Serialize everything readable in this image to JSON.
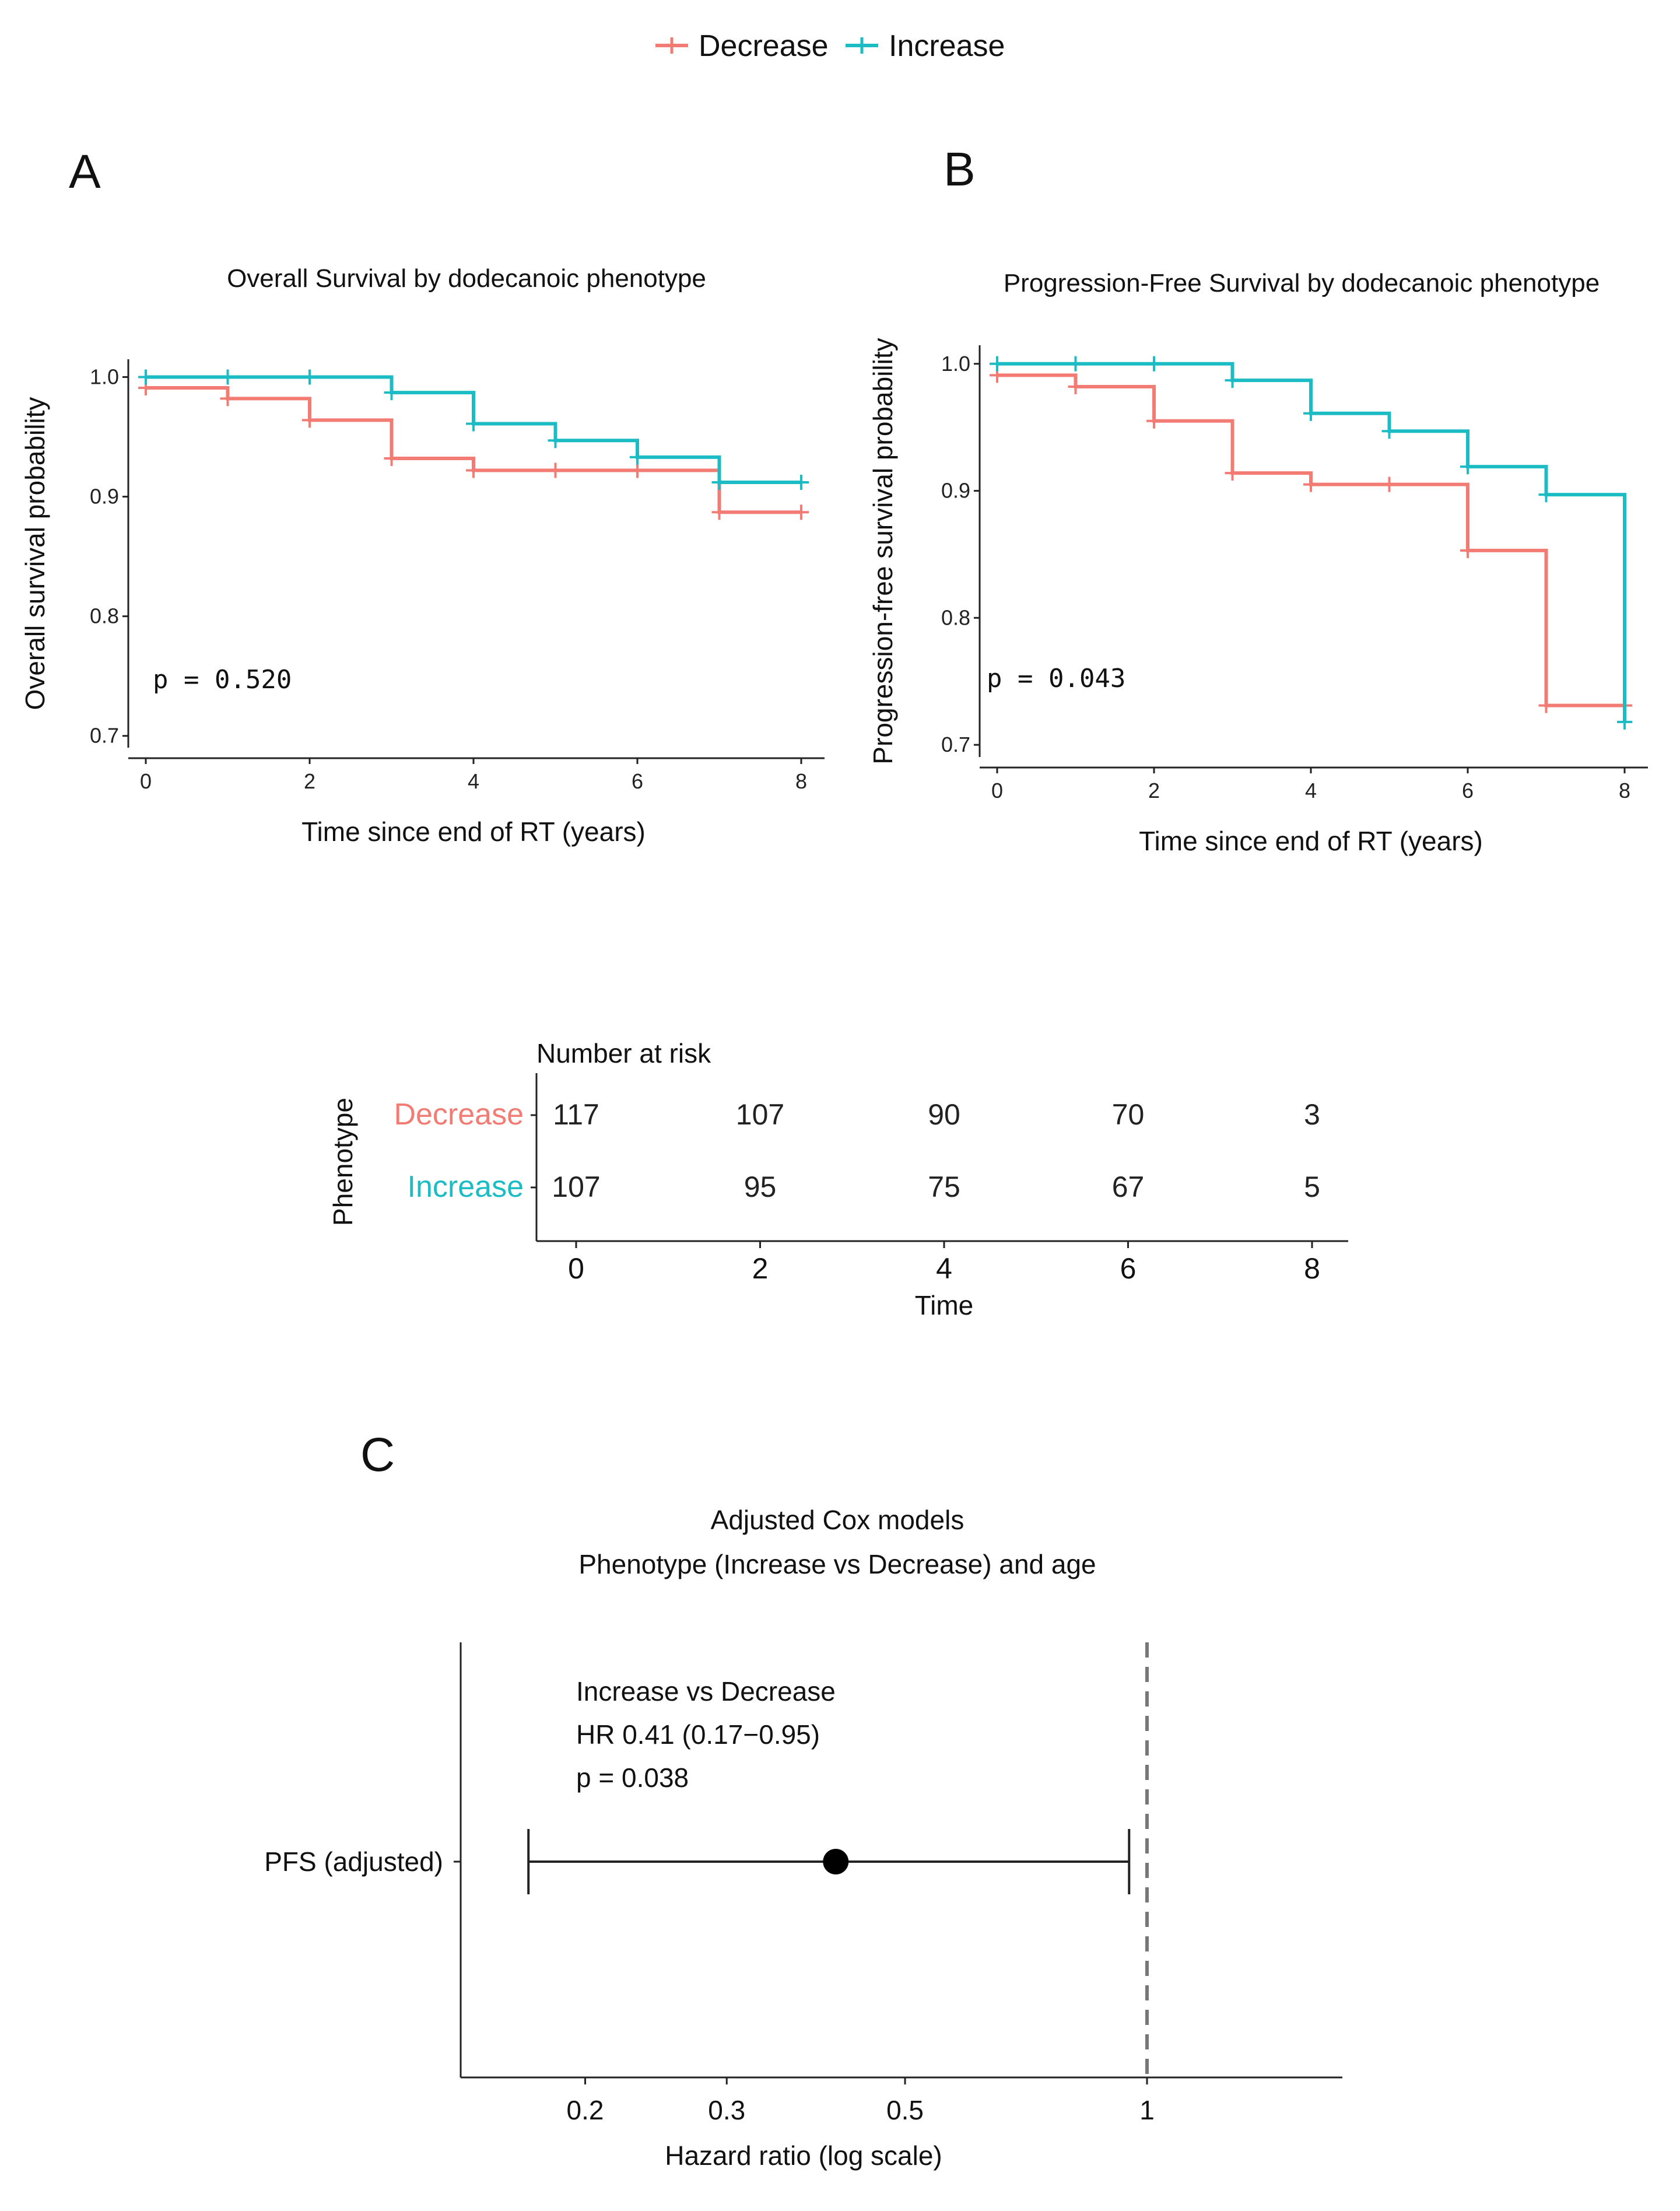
{
  "colors": {
    "decrease": "#F27B73",
    "increase": "#1CBCC4",
    "ink": "#222222",
    "refline": "#777777"
  },
  "legend": {
    "items": [
      {
        "label": "Decrease",
        "key": "decrease"
      },
      {
        "label": "Increase",
        "key": "increase"
      }
    ]
  },
  "panels": {
    "A": "A",
    "B": "B",
    "C": "C"
  },
  "chart_data": [
    {
      "id": "A",
      "type": "line",
      "step": true,
      "title": "Overall Survival by dodecanoic phenotype",
      "xlabel": "Time since end of RT (years)",
      "ylabel": "Overall survival probability",
      "xlim": [
        0,
        8
      ],
      "ylim": [
        0.695,
        1.01
      ],
      "xticks": [
        0,
        2,
        4,
        6,
        8
      ],
      "yticks": [
        0.7,
        0.8,
        0.9,
        1.0
      ],
      "ytick_labels": [
        "0.7",
        "0.8",
        "0.9",
        "1.0"
      ],
      "annotation": "p = 0.520",
      "series": [
        {
          "name": "Decrease",
          "key": "decrease",
          "steps": [
            [
              0,
              0.991
            ],
            [
              1,
              0.982
            ],
            [
              2,
              0.964
            ],
            [
              3,
              0.932
            ],
            [
              4,
              0.922
            ],
            [
              7,
              0.887
            ],
            [
              8,
              0.887
            ]
          ],
          "censor": [
            [
              0,
              0.991
            ],
            [
              1,
              0.982
            ],
            [
              2,
              0.964
            ],
            [
              3,
              0.932
            ],
            [
              4,
              0.922
            ],
            [
              5,
              0.922
            ],
            [
              6,
              0.922
            ],
            [
              7,
              0.887
            ],
            [
              8,
              0.887
            ]
          ]
        },
        {
          "name": "Increase",
          "key": "increase",
          "steps": [
            [
              0,
              1.0
            ],
            [
              3,
              0.987
            ],
            [
              4,
              0.961
            ],
            [
              5,
              0.947
            ],
            [
              6,
              0.933
            ],
            [
              7,
              0.912
            ],
            [
              8,
              0.912
            ]
          ],
          "censor": [
            [
              0,
              1.0
            ],
            [
              1,
              1.0
            ],
            [
              2,
              1.0
            ],
            [
              3,
              0.987
            ],
            [
              4,
              0.961
            ],
            [
              5,
              0.947
            ],
            [
              6,
              0.933
            ],
            [
              7,
              0.912
            ],
            [
              8,
              0.912
            ]
          ]
        }
      ]
    },
    {
      "id": "B",
      "type": "line",
      "step": true,
      "title": "Progression-Free Survival by dodecanoic phenotype",
      "xlabel": "Time since end of RT (years)",
      "ylabel": "Progression-free survival probability",
      "xlim": [
        0,
        8
      ],
      "ylim": [
        0.695,
        1.01
      ],
      "xticks": [
        0,
        2,
        4,
        6,
        8
      ],
      "yticks": [
        0.7,
        0.8,
        0.9,
        1.0
      ],
      "ytick_labels": [
        "0.7",
        "0.8",
        "0.9",
        "1.0"
      ],
      "annotation": "p = 0.043",
      "series": [
        {
          "name": "Decrease",
          "key": "decrease",
          "steps": [
            [
              0,
              0.991
            ],
            [
              1,
              0.982
            ],
            [
              2,
              0.955
            ],
            [
              3,
              0.914
            ],
            [
              4,
              0.905
            ],
            [
              6,
              0.853
            ],
            [
              7,
              0.731
            ],
            [
              8,
              0.731
            ]
          ],
          "censor": [
            [
              0,
              0.991
            ],
            [
              1,
              0.982
            ],
            [
              2,
              0.955
            ],
            [
              3,
              0.914
            ],
            [
              4,
              0.905
            ],
            [
              5,
              0.905
            ],
            [
              6,
              0.853
            ],
            [
              7,
              0.731
            ],
            [
              8,
              0.731
            ]
          ]
        },
        {
          "name": "Increase",
          "key": "increase",
          "steps": [
            [
              0,
              1.0
            ],
            [
              3,
              0.987
            ],
            [
              4,
              0.961
            ],
            [
              5,
              0.947
            ],
            [
              6,
              0.919
            ],
            [
              7,
              0.897
            ],
            [
              8,
              0.718
            ]
          ],
          "censor": [
            [
              0,
              1.0
            ],
            [
              1,
              1.0
            ],
            [
              2,
              1.0
            ],
            [
              3,
              0.987
            ],
            [
              4,
              0.961
            ],
            [
              5,
              0.947
            ],
            [
              6,
              0.919
            ],
            [
              7,
              0.897
            ],
            [
              8,
              0.718
            ]
          ]
        }
      ]
    },
    {
      "id": "risk",
      "type": "table",
      "title": "Number at risk",
      "xlabel": "Time",
      "ylabel": "Phenotype",
      "xlim": [
        0,
        8
      ],
      "xticks": [
        0,
        2,
        4,
        6,
        8
      ],
      "strata": [
        {
          "name": "Decrease",
          "key": "decrease",
          "values": [
            117,
            107,
            90,
            70,
            3
          ]
        },
        {
          "name": "Increase",
          "key": "increase",
          "values": [
            107,
            95,
            75,
            67,
            5
          ]
        }
      ]
    },
    {
      "id": "C",
      "type": "scatter",
      "title": "Adjusted Cox models",
      "subtitle": "Phenotype (Increase vs Decrease) and age",
      "xlabel": "Hazard ratio (log scale)",
      "xscale": "log",
      "xlim": [
        0.14,
        1.75
      ],
      "xticks": [
        0.2,
        0.3,
        0.5,
        1
      ],
      "xtick_labels": [
        "0.2",
        "0.3",
        "0.5",
        "1"
      ],
      "reference_line": 1,
      "rows": [
        {
          "label": "PFS (adjusted)",
          "hr": 0.41,
          "lower": 0.17,
          "upper": 0.95
        }
      ],
      "annotation_lines": [
        "Increase vs Decrease",
        "HR 0.41 (0.17−0.95)",
        "p = 0.038"
      ]
    }
  ]
}
